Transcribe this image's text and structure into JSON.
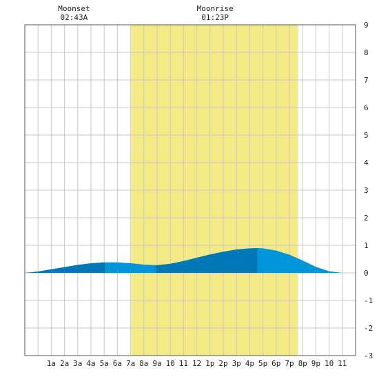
{
  "header_labels": [
    {
      "title": "Moonset",
      "time": "02:43A",
      "hour": 2.72
    },
    {
      "title": "Moonrise",
      "time": "01:23P",
      "hour": 13.38
    }
  ],
  "chart_data": {
    "type": "area",
    "title": "",
    "xlabel": "",
    "ylabel": "",
    "xlim": [
      -1,
      24
    ],
    "ylim": [
      -3,
      9
    ],
    "grid": true,
    "x_tick_labels": [
      {
        "hour": 1,
        "label": "1a"
      },
      {
        "hour": 2,
        "label": "2a"
      },
      {
        "hour": 3,
        "label": "3a"
      },
      {
        "hour": 4,
        "label": "4a"
      },
      {
        "hour": 5,
        "label": "5a"
      },
      {
        "hour": 6,
        "label": "6a"
      },
      {
        "hour": 7,
        "label": "7a"
      },
      {
        "hour": 8,
        "label": "8a"
      },
      {
        "hour": 9,
        "label": "9a"
      },
      {
        "hour": 10,
        "label": "10"
      },
      {
        "hour": 11,
        "label": "11"
      },
      {
        "hour": 12,
        "label": "12"
      },
      {
        "hour": 13,
        "label": "1p"
      },
      {
        "hour": 14,
        "label": "2p"
      },
      {
        "hour": 15,
        "label": "3p"
      },
      {
        "hour": 16,
        "label": "4p"
      },
      {
        "hour": 17,
        "label": "5p"
      },
      {
        "hour": 18,
        "label": "6p"
      },
      {
        "hour": 19,
        "label": "7p"
      },
      {
        "hour": 20,
        "label": "8p"
      },
      {
        "hour": 21,
        "label": "9p"
      },
      {
        "hour": 22,
        "label": "10"
      },
      {
        "hour": 23,
        "label": "11"
      }
    ],
    "y_tick_labels": [
      "9",
      "8",
      "7",
      "6",
      "5",
      "4",
      "3",
      "2",
      "1",
      "0",
      "-1",
      "-2",
      "-3"
    ],
    "y_tick_values": [
      9,
      8,
      7,
      6,
      5,
      4,
      3,
      2,
      1,
      0,
      -1,
      -2,
      -3
    ],
    "daylight_band": [
      7.05,
      19.65
    ],
    "tide": {
      "x": [
        -1,
        0,
        1,
        2,
        3,
        4,
        5,
        5.1,
        6,
        7,
        8,
        8.9,
        9,
        10,
        11,
        12,
        13,
        14,
        15,
        16,
        16.6,
        17,
        18,
        19,
        20,
        21,
        22,
        23,
        24
      ],
      "y": [
        0.0,
        0.05,
        0.13,
        0.21,
        0.29,
        0.35,
        0.38,
        0.38,
        0.38,
        0.35,
        0.3,
        0.28,
        0.28,
        0.33,
        0.43,
        0.55,
        0.67,
        0.77,
        0.85,
        0.89,
        0.9,
        0.89,
        0.81,
        0.66,
        0.45,
        0.22,
        0.06,
        0.0,
        0.0
      ]
    },
    "tide_shade_breaks": [
      5.1,
      8.9,
      16.6
    ],
    "colors": {
      "daylight": "#f3ea85",
      "tide_dark": "#0077b6",
      "tide_light": "#0096d9",
      "grid": "#c8c8c8",
      "frame": "#555555",
      "text": "#222222"
    }
  }
}
